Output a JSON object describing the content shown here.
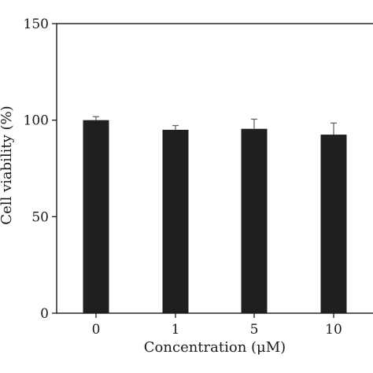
{
  "chart_data": {
    "type": "bar",
    "categories": [
      "0",
      "1",
      "5",
      "10"
    ],
    "values": [
      100,
      95,
      95.5,
      92.5
    ],
    "errors": [
      1.8,
      2.2,
      5.0,
      6.0
    ],
    "xlabel": "Concentration (μM)",
    "ylabel": "Cell viability (%)",
    "ylim": [
      0,
      150
    ],
    "yticks": [
      0,
      50,
      100,
      150
    ],
    "ytick_labels": [
      "0",
      "50",
      "100",
      "150"
    ],
    "grid": false,
    "bar_color": "#1f1f1f",
    "axis_color": "#1a1a1a"
  }
}
